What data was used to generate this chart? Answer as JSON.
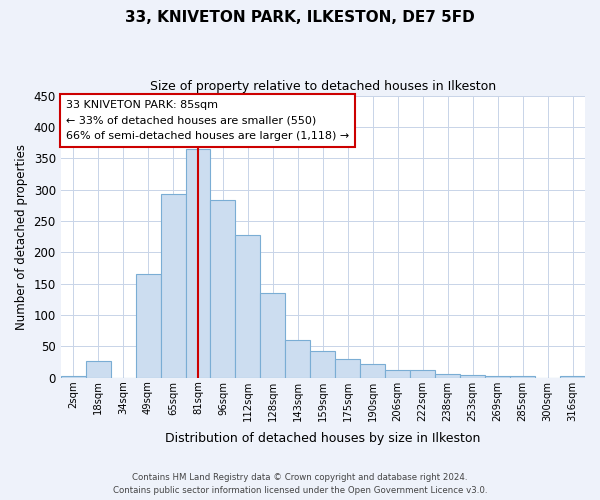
{
  "title": "33, KNIVETON PARK, ILKESTON, DE7 5FD",
  "subtitle": "Size of property relative to detached houses in Ilkeston",
  "xlabel": "Distribution of detached houses by size in Ilkeston",
  "ylabel": "Number of detached properties",
  "bar_labels": [
    "2sqm",
    "18sqm",
    "34sqm",
    "49sqm",
    "65sqm",
    "81sqm",
    "96sqm",
    "112sqm",
    "128sqm",
    "143sqm",
    "159sqm",
    "175sqm",
    "190sqm",
    "206sqm",
    "222sqm",
    "238sqm",
    "253sqm",
    "269sqm",
    "285sqm",
    "300sqm",
    "316sqm"
  ],
  "bar_values": [
    2,
    27,
    0,
    165,
    293,
    365,
    283,
    228,
    135,
    60,
    43,
    30,
    22,
    13,
    13,
    6,
    4,
    2,
    2,
    0,
    2
  ],
  "bar_color": "#ccddf0",
  "bar_edge_color": "#7aadd4",
  "vline_x": 5,
  "vline_color": "#cc0000",
  "ylim": [
    0,
    450
  ],
  "yticks": [
    0,
    50,
    100,
    150,
    200,
    250,
    300,
    350,
    400,
    450
  ],
  "annotation_title": "33 KNIVETON PARK: 85sqm",
  "annotation_line1": "← 33% of detached houses are smaller (550)",
  "annotation_line2": "66% of semi-detached houses are larger (1,118) →",
  "annotation_box_color": "#ffffff",
  "annotation_box_edge": "#cc0000",
  "footer_line1": "Contains HM Land Registry data © Crown copyright and database right 2024.",
  "footer_line2": "Contains public sector information licensed under the Open Government Licence v3.0.",
  "bg_color": "#eef2fa",
  "plot_bg_color": "#ffffff",
  "grid_color": "#c8d4e8"
}
